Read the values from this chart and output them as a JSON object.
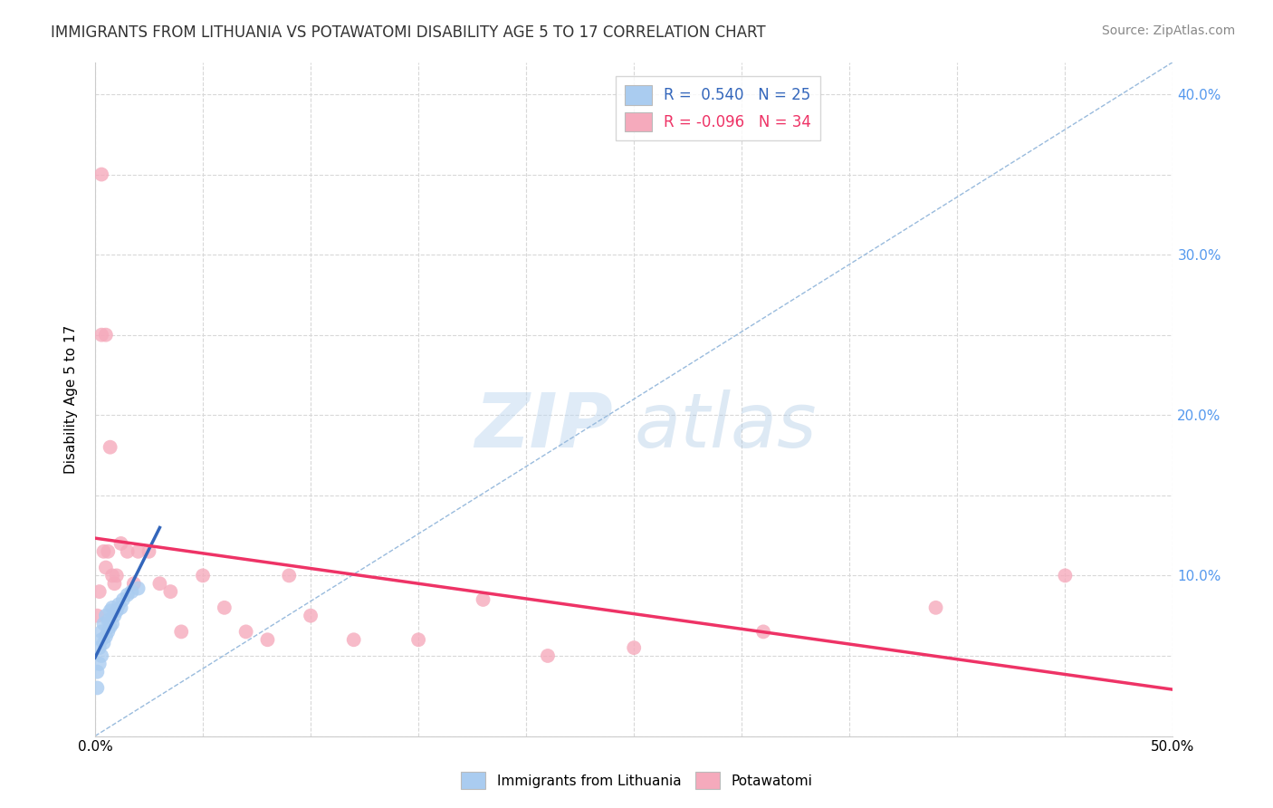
{
  "title": "IMMIGRANTS FROM LITHUANIA VS POTAWATOMI DISABILITY AGE 5 TO 17 CORRELATION CHART",
  "source": "Source: ZipAtlas.com",
  "ylabel": "Disability Age 5 to 17",
  "xlim": [
    0.0,
    0.5
  ],
  "ylim": [
    0.0,
    0.42
  ],
  "xticks": [
    0.0,
    0.05,
    0.1,
    0.15,
    0.2,
    0.25,
    0.3,
    0.35,
    0.4,
    0.45,
    0.5
  ],
  "yticks": [
    0.0,
    0.05,
    0.1,
    0.15,
    0.2,
    0.25,
    0.3,
    0.35,
    0.4
  ],
  "background_color": "#ffffff",
  "grid_color": "#d8d8d8",
  "blue_color": "#aaccf0",
  "pink_color": "#f5aabc",
  "blue_line_color": "#3366bb",
  "pink_line_color": "#ee3366",
  "dashed_line_color": "#99bbdd",
  "legend_R_blue": "0.540",
  "legend_N_blue": "25",
  "legend_R_pink": "-0.096",
  "legend_N_pink": "34",
  "blue_scatter_x": [
    0.001,
    0.001,
    0.002,
    0.002,
    0.003,
    0.003,
    0.003,
    0.004,
    0.004,
    0.005,
    0.005,
    0.006,
    0.006,
    0.007,
    0.007,
    0.008,
    0.008,
    0.009,
    0.01,
    0.011,
    0.012,
    0.013,
    0.015,
    0.017,
    0.02
  ],
  "blue_scatter_y": [
    0.03,
    0.04,
    0.045,
    0.055,
    0.05,
    0.06,
    0.065,
    0.058,
    0.07,
    0.062,
    0.075,
    0.065,
    0.072,
    0.068,
    0.078,
    0.07,
    0.08,
    0.075,
    0.078,
    0.082,
    0.08,
    0.085,
    0.088,
    0.09,
    0.092
  ],
  "pink_scatter_x": [
    0.001,
    0.002,
    0.003,
    0.003,
    0.004,
    0.005,
    0.005,
    0.006,
    0.007,
    0.008,
    0.009,
    0.01,
    0.012,
    0.015,
    0.018,
    0.02,
    0.025,
    0.03,
    0.035,
    0.04,
    0.05,
    0.06,
    0.07,
    0.08,
    0.09,
    0.1,
    0.12,
    0.15,
    0.18,
    0.21,
    0.25,
    0.31,
    0.39,
    0.45
  ],
  "pink_scatter_y": [
    0.075,
    0.09,
    0.35,
    0.25,
    0.115,
    0.105,
    0.25,
    0.115,
    0.18,
    0.1,
    0.095,
    0.1,
    0.12,
    0.115,
    0.095,
    0.115,
    0.115,
    0.095,
    0.09,
    0.065,
    0.1,
    0.08,
    0.065,
    0.06,
    0.1,
    0.075,
    0.06,
    0.06,
    0.085,
    0.05,
    0.055,
    0.065,
    0.08,
    0.1
  ],
  "watermark_zip": "ZIP",
  "watermark_atlas": "atlas",
  "marker_size": 130
}
